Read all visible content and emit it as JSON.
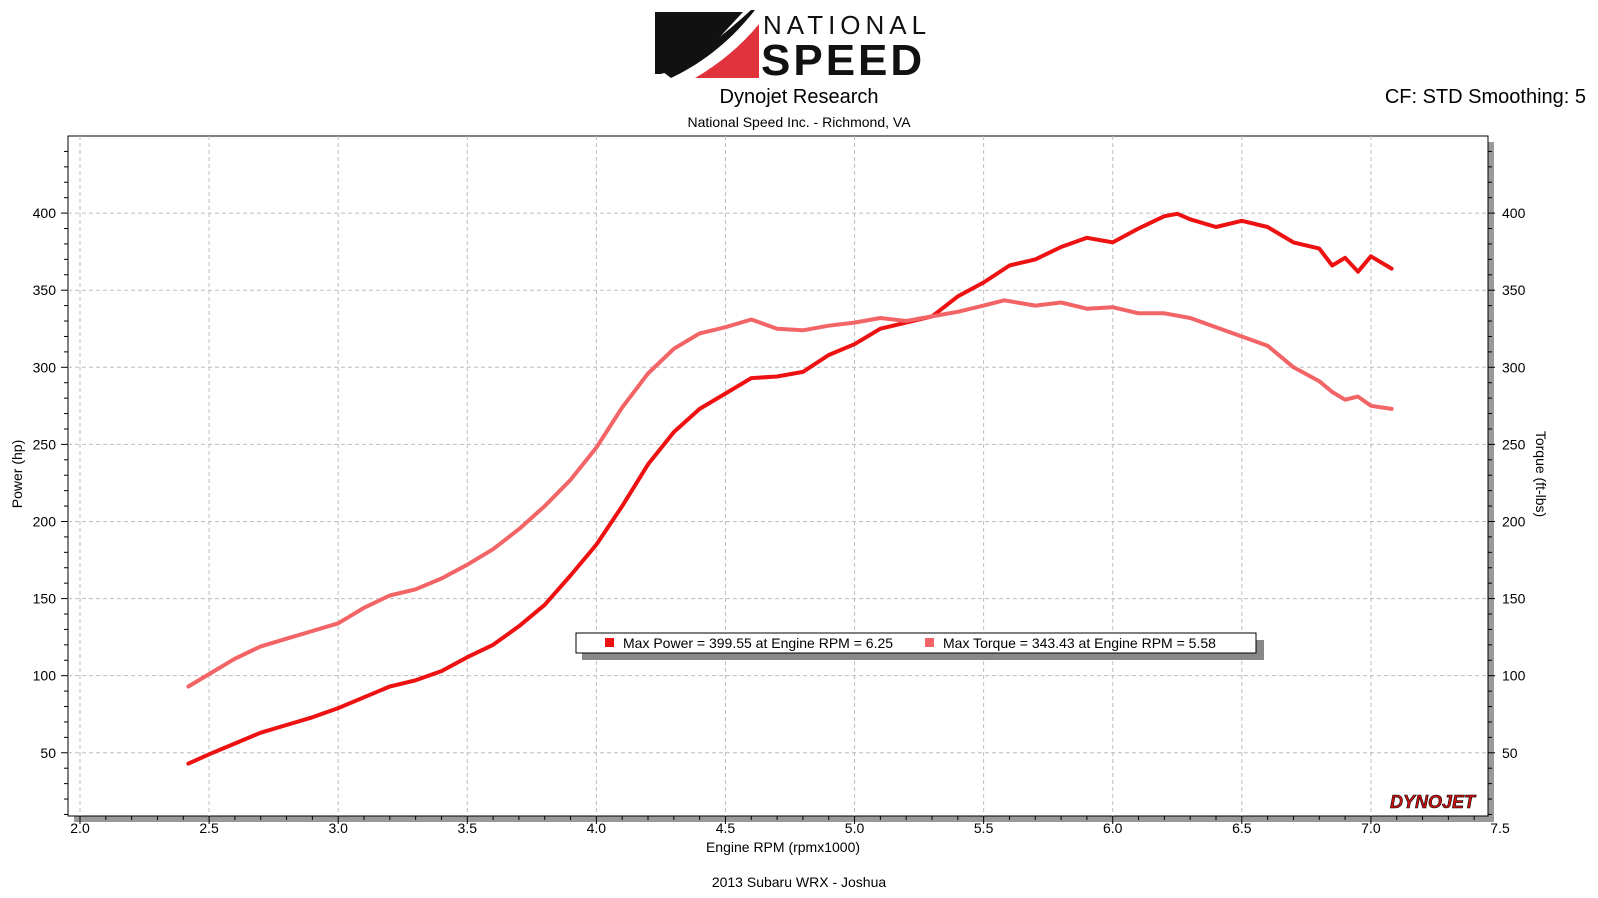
{
  "logo": {
    "text_top": "NATIONAL",
    "text_bottom": "SPEED",
    "accent_color": "#e0333c"
  },
  "header": {
    "title": "Dynojet Research",
    "subtitle": "National Speed Inc. - Richmond, VA",
    "cf_info": "CF: STD Smoothing: 5"
  },
  "footer": {
    "run_name": "2013 Subaru WRX - Joshua"
  },
  "watermark": "DYNOJET",
  "chart_data": {
    "type": "line",
    "xlabel": "Engine RPM (rpmx1000)",
    "ylabel": "Power (hp)",
    "ylabel_right": "Torque (ft-lbs)",
    "xlim": [
      2.0,
      7.5
    ],
    "ylim": [
      9,
      450
    ],
    "x_ticks": [
      "2.0",
      "2.5",
      "3.0",
      "3.5",
      "4.0",
      "4.5",
      "5.0",
      "5.5",
      "6.0",
      "6.5",
      "7.0",
      "7.5"
    ],
    "x_tick_values": [
      2.0,
      2.5,
      3.0,
      3.5,
      4.0,
      4.5,
      5.0,
      5.5,
      6.0,
      6.5,
      7.0,
      7.5
    ],
    "y_ticks": [
      "50",
      "100",
      "150",
      "200",
      "250",
      "300",
      "350",
      "400"
    ],
    "y_tick_values": [
      50,
      100,
      150,
      200,
      250,
      300,
      350,
      400
    ],
    "grid": true,
    "legend": [
      "Max Power = 399.55 at Engine RPM = 6.25",
      "Max Torque = 343.43 at Engine RPM = 5.58"
    ],
    "series": [
      {
        "color": "#ee1111",
        "x": [
          2.42,
          2.5,
          2.6,
          2.7,
          2.8,
          2.9,
          3.0,
          3.1,
          3.2,
          3.3,
          3.4,
          3.5,
          3.6,
          3.7,
          3.8,
          3.9,
          4.0,
          4.1,
          4.2,
          4.3,
          4.4,
          4.5,
          4.6,
          4.7,
          4.8,
          4.9,
          5.0,
          5.1,
          5.2,
          5.3,
          5.4,
          5.5,
          5.6,
          5.7,
          5.8,
          5.9,
          6.0,
          6.1,
          6.2,
          6.25,
          6.3,
          6.4,
          6.5,
          6.6,
          6.7,
          6.8,
          6.85,
          6.9,
          6.95,
          7.0,
          7.08
        ],
        "y": [
          43,
          49,
          56,
          63,
          68,
          73,
          79,
          86,
          93,
          97,
          103,
          112,
          120,
          132,
          146,
          165,
          185,
          210,
          237,
          258,
          273,
          283,
          293,
          294,
          297,
          308,
          315,
          325,
          329,
          333,
          346,
          355,
          366,
          370,
          378,
          384,
          381,
          390,
          398,
          399.55,
          396,
          391,
          395,
          391,
          381,
          377,
          366,
          371,
          362,
          372,
          364
        ]
      },
      {
        "color": "#f26466",
        "x": [
          2.42,
          2.5,
          2.6,
          2.7,
          2.8,
          2.9,
          3.0,
          3.1,
          3.2,
          3.3,
          3.4,
          3.5,
          3.6,
          3.7,
          3.8,
          3.9,
          4.0,
          4.1,
          4.2,
          4.3,
          4.4,
          4.5,
          4.6,
          4.7,
          4.8,
          4.9,
          5.0,
          5.1,
          5.2,
          5.3,
          5.4,
          5.5,
          5.58,
          5.7,
          5.8,
          5.9,
          6.0,
          6.1,
          6.2,
          6.3,
          6.4,
          6.5,
          6.6,
          6.7,
          6.8,
          6.85,
          6.9,
          6.95,
          7.0,
          7.08
        ],
        "y": [
          93,
          101,
          111,
          119,
          124,
          129,
          134,
          144,
          152,
          156,
          163,
          172,
          182,
          195,
          210,
          227,
          248,
          274,
          296,
          312,
          322,
          326,
          331,
          325,
          324,
          327,
          329,
          332,
          330,
          333,
          336,
          340,
          343.43,
          340,
          342,
          338,
          339,
          335,
          335,
          332,
          326,
          320,
          314,
          300,
          291,
          284,
          279,
          281,
          275,
          273
        ]
      }
    ]
  }
}
